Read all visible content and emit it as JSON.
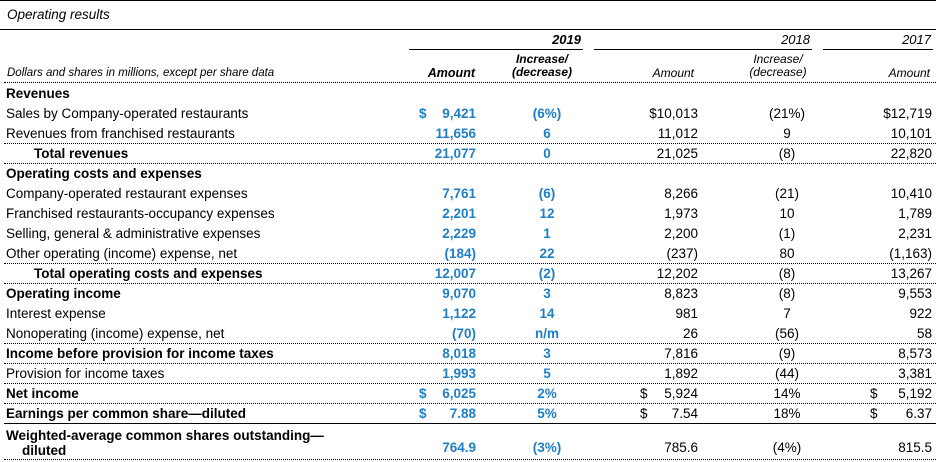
{
  "title": "Operating results",
  "years": [
    "2019",
    "2018",
    "2017"
  ],
  "headers": {
    "label": "Dollars and shares in millions, except per share data",
    "amount_2019": "Amount",
    "change_2019_line1": "Increase/",
    "change_2019_line2": "(decrease)",
    "amount_2018": "Amount",
    "change_2018_line1": "Increase/",
    "change_2018_line2": "(decrease)",
    "amount_2017": "Amount"
  },
  "rows": [
    {
      "label": "Revenues",
      "a2019": "",
      "c2019": "",
      "a2018": "",
      "c2018": "",
      "a2017": ""
    },
    {
      "label": "Sales by Company-operated restaurants",
      "a2019": "9,421",
      "c2019": "(6%)",
      "a2018": "$10,013",
      "c2018": "(21%)",
      "a2017": "$12,719"
    },
    {
      "label": "Revenues from franchised restaurants",
      "a2019": "11,656",
      "c2019": "6",
      "a2018": "11,012",
      "c2018": "9",
      "a2017": "10,101"
    },
    {
      "label": "Total revenues",
      "a2019": "21,077",
      "c2019": "0",
      "a2018": "21,025",
      "c2018": "(8)",
      "a2017": "22,820"
    },
    {
      "label": "Operating costs and expenses",
      "a2019": "",
      "c2019": "",
      "a2018": "",
      "c2018": "",
      "a2017": ""
    },
    {
      "label": "Company-operated restaurant expenses",
      "a2019": "7,761",
      "c2019": "(6)",
      "a2018": "8,266",
      "c2018": "(21)",
      "a2017": "10,410"
    },
    {
      "label": "Franchised restaurants-occupancy expenses",
      "a2019": "2,201",
      "c2019": "12",
      "a2018": "1,973",
      "c2018": "10",
      "a2017": "1,789"
    },
    {
      "label": "Selling, general & administrative expenses",
      "a2019": "2,229",
      "c2019": "1",
      "a2018": "2,200",
      "c2018": "(1)",
      "a2017": "2,231"
    },
    {
      "label": "Other operating (income) expense, net",
      "a2019": "(184)",
      "c2019": "22",
      "a2018": "(237)",
      "c2018": "80",
      "a2017": "(1,163)"
    },
    {
      "label": "Total operating costs and expenses",
      "a2019": "12,007",
      "c2019": "(2)",
      "a2018": "12,202",
      "c2018": "(8)",
      "a2017": "13,267"
    },
    {
      "label": "Operating income",
      "a2019": "9,070",
      "c2019": "3",
      "a2018": "8,823",
      "c2018": "(8)",
      "a2017": "9,553"
    },
    {
      "label": "Interest expense",
      "a2019": "1,122",
      "c2019": "14",
      "a2018": "981",
      "c2018": "7",
      "a2017": "922"
    },
    {
      "label": "Nonoperating (income) expense, net",
      "a2019": "(70)",
      "c2019": "n/m",
      "a2018": "26",
      "c2018": "(56)",
      "a2017": "58"
    },
    {
      "label": "Income before provision for income taxes",
      "a2019": "8,018",
      "c2019": "3",
      "a2018": "7,816",
      "c2018": "(9)",
      "a2017": "8,573"
    },
    {
      "label": "Provision for income taxes",
      "a2019": "1,993",
      "c2019": "5",
      "a2018": "1,892",
      "c2018": "(44)",
      "a2017": "3,381"
    },
    {
      "label": "Net income",
      "a2019": "6,025",
      "c2019": "2%",
      "a2018": "5,924",
      "c2018": "14%",
      "a2017": "5,192"
    },
    {
      "label": "Earnings per common share—diluted",
      "a2019": "7.88",
      "c2019": "5%",
      "a2018": "7.54",
      "c2018": "18%",
      "a2017": "6.37"
    }
  ],
  "last_row": {
    "label_line1": "Weighted-average common shares outstanding—",
    "label_line2": "diluted",
    "a2019": "764.9",
    "c2019": "(3%)",
    "a2018": "785.6",
    "c2018": "(4%)",
    "a2017": "815.5"
  },
  "dollar_sign": "$",
  "colors": {
    "accent": "#1f7fc6"
  }
}
